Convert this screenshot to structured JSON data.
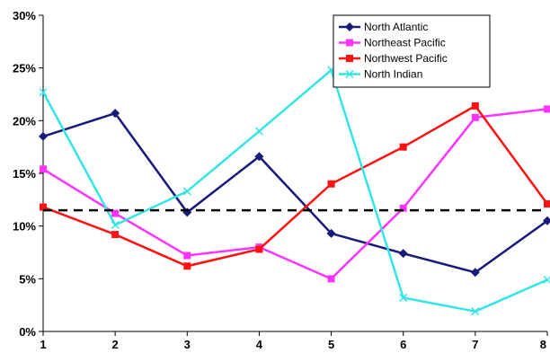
{
  "chart_data": {
    "type": "line",
    "x": [
      1,
      2,
      3,
      4,
      5,
      6,
      7,
      8
    ],
    "x_tick_labels": [
      "1",
      "2",
      "3",
      "4",
      "5",
      "6",
      "7",
      "8"
    ],
    "ylim": [
      0,
      0.3
    ],
    "y_ticks": [
      0,
      0.05,
      0.1,
      0.15,
      0.2,
      0.25,
      0.3
    ],
    "y_tick_labels": [
      "0%",
      "5%",
      "10%",
      "15%",
      "20%",
      "25%",
      "30%"
    ],
    "grid": false,
    "legend_position": "top-right",
    "reference_line": {
      "value": 0.115,
      "style": "dashed",
      "color": "#000000"
    },
    "series": [
      {
        "name": "North Atlantic",
        "color": "#1a1a7a",
        "marker": "diamond",
        "values": [
          0.185,
          0.207,
          0.113,
          0.166,
          0.093,
          0.074,
          0.056,
          0.105
        ]
      },
      {
        "name": "Northeast Pacific",
        "color": "#ff33ff",
        "marker": "square",
        "values": [
          0.154,
          0.112,
          0.072,
          0.08,
          0.05,
          0.117,
          0.203,
          0.211
        ]
      },
      {
        "name": "Northwest Pacific",
        "color": "#ff1111",
        "marker": "square",
        "values": [
          0.118,
          0.092,
          0.062,
          0.078,
          0.14,
          0.175,
          0.214,
          0.121
        ]
      },
      {
        "name": "North Indian",
        "color": "#33e5e5",
        "marker": "x",
        "values": [
          0.227,
          0.101,
          0.133,
          0.19,
          0.248,
          0.032,
          0.019,
          0.049
        ]
      }
    ]
  }
}
